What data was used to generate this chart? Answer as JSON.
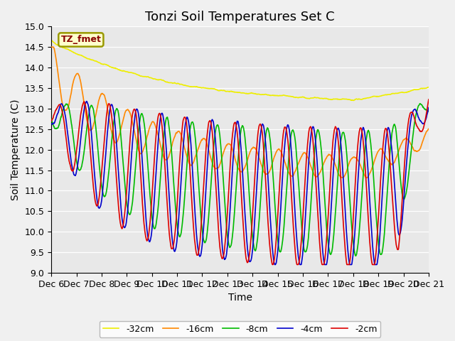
{
  "title": "Tonzi Soil Temperatures Set C",
  "xlabel": "Time",
  "ylabel": "Soil Temperature (C)",
  "ylim": [
    9.0,
    15.0
  ],
  "yticks": [
    9.0,
    9.5,
    10.0,
    10.5,
    11.0,
    11.5,
    12.0,
    12.5,
    13.0,
    13.5,
    14.0,
    14.5,
    15.0
  ],
  "xtick_labels": [
    "Dec 6",
    "Dec 7",
    "Dec 8",
    "Dec 9",
    "Dec 10",
    "Dec 11",
    "Dec 12",
    "Dec 13",
    "Dec 14",
    "Dec 15",
    "Dec 16",
    "Dec 17",
    "Dec 18",
    "Dec 19",
    "Dec 20",
    "Dec 21"
  ],
  "line_colors": {
    "-2cm": "#dd0000",
    "-4cm": "#0000cc",
    "-8cm": "#00bb00",
    "-16cm": "#ff8800",
    "-32cm": "#eeee00"
  },
  "legend_label": "TZ_fmet",
  "legend_text_color": "#880000",
  "legend_bg_color": "#ffffcc",
  "legend_border_color": "#999900",
  "plot_bg_color": "#e8e8e8",
  "fig_bg_color": "#f0f0f0",
  "title_fontsize": 13,
  "axis_fontsize": 10,
  "tick_fontsize": 9,
  "line_width": 1.2
}
